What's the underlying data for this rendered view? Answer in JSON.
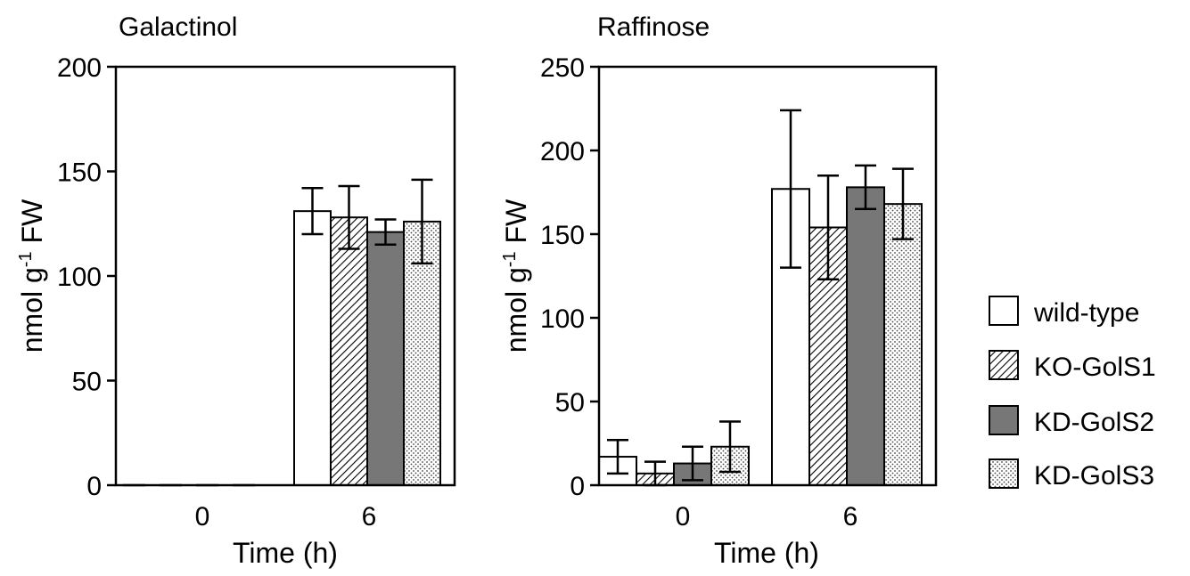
{
  "legend": {
    "items": [
      {
        "label": "wild-type",
        "fill": "white"
      },
      {
        "label": "KO-GolS1",
        "fill": "hatch"
      },
      {
        "label": "KD-GolS2",
        "fill": "#777777"
      },
      {
        "label": "KD-GolS3",
        "fill": "dots"
      }
    ]
  },
  "chart_data": [
    {
      "type": "bar",
      "title": "Galactinol",
      "ylabel": "nmol g",
      "ylabel_superscript": "-1",
      "ylabel_suffix": " FW",
      "xlabel": "Time (h)",
      "categories": [
        "0",
        "6"
      ],
      "ylim": [
        0,
        200
      ],
      "yticks": [
        "0",
        "50",
        "100",
        "150",
        "200"
      ],
      "grid": false,
      "series": [
        {
          "name": "wild-type",
          "values": [
            0,
            131
          ],
          "errors": [
            0,
            11
          ]
        },
        {
          "name": "KO-GolS1",
          "values": [
            0,
            128
          ],
          "errors": [
            0,
            15
          ]
        },
        {
          "name": "KD-GolS2",
          "values": [
            0,
            121
          ],
          "errors": [
            0,
            6
          ]
        },
        {
          "name": "KD-GolS3",
          "values": [
            0,
            126
          ],
          "errors": [
            0,
            20
          ]
        }
      ]
    },
    {
      "type": "bar",
      "title": "Raffinose",
      "ylabel": "nmol g",
      "ylabel_superscript": "-1",
      "ylabel_suffix": " FW",
      "xlabel": "Time (h)",
      "categories": [
        "0",
        "6"
      ],
      "ylim": [
        0,
        250
      ],
      "yticks": [
        "0",
        "50",
        "100",
        "150",
        "200",
        "250"
      ],
      "grid": false,
      "series": [
        {
          "name": "wild-type",
          "values": [
            17,
            177
          ],
          "errors": [
            10,
            47
          ]
        },
        {
          "name": "KO-GolS1",
          "values": [
            7,
            154
          ],
          "errors": [
            7,
            31
          ]
        },
        {
          "name": "KD-GolS2",
          "values": [
            13,
            178
          ],
          "errors": [
            10,
            13
          ]
        },
        {
          "name": "KD-GolS3",
          "values": [
            23,
            168
          ],
          "errors": [
            15,
            21
          ]
        }
      ]
    }
  ]
}
